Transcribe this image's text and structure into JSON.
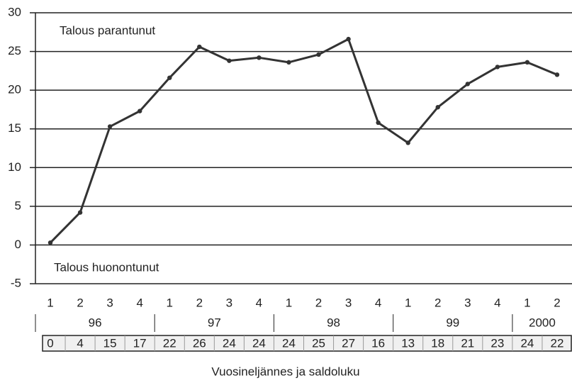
{
  "chart_data": {
    "type": "line",
    "annotations": [
      "Talous parantunut",
      "Talous huonontunut"
    ],
    "x_label": "Vuosineljännes ja saldoluku",
    "categories": [
      "1",
      "2",
      "3",
      "4",
      "1",
      "2",
      "3",
      "4",
      "1",
      "2",
      "3",
      "4",
      "1",
      "2",
      "3",
      "4",
      "1",
      "2"
    ],
    "x_groups": [
      "96",
      "97",
      "98",
      "99",
      "2000"
    ],
    "values": [
      0.3,
      4.2,
      15.3,
      17.3,
      21.6,
      25.6,
      23.8,
      24.2,
      23.6,
      24.6,
      26.6,
      15.8,
      13.2,
      17.8,
      20.8,
      23.0,
      23.6,
      22.0
    ],
    "value_labels": [
      "0",
      "4",
      "15",
      "17",
      "22",
      "26",
      "24",
      "24",
      "24",
      "25",
      "27",
      "16",
      "13",
      "18",
      "21",
      "23",
      "24",
      "22"
    ],
    "color": "#333333",
    "ylim": [
      -5,
      30
    ],
    "yticks": [
      -5,
      0,
      5,
      10,
      15,
      20,
      25,
      30
    ],
    "grid": true
  }
}
